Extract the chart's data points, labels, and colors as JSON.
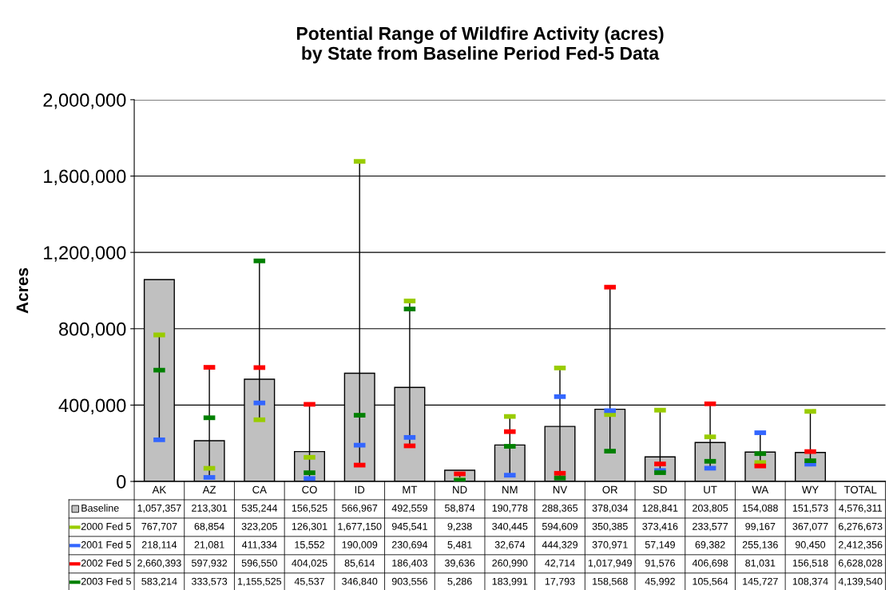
{
  "chart_data": {
    "type": "bar",
    "title": "Potential Range of Wildfire Activity (acres)\nby State from Baseline Period Fed-5 Data",
    "ylabel": "Acres",
    "categories": [
      "AK",
      "AZ",
      "CA",
      "CO",
      "ID",
      "MT",
      "ND",
      "NM",
      "NV",
      "OR",
      "SD",
      "UT",
      "WA",
      "WY",
      "TOTAL"
    ],
    "series": [
      {
        "name": "Baseline",
        "color": "#c0c0c0",
        "values": [
          1057357,
          213301,
          535244,
          156525,
          566967,
          492559,
          58874,
          190778,
          288365,
          378034,
          128841,
          203805,
          154088,
          151573,
          null
        ],
        "value_labels": [
          "1,057,357",
          "213,301",
          "535,244",
          "156,525",
          "566,967",
          "492,559",
          "58,874",
          "190,778",
          "288,365",
          "378,034",
          "128,841",
          "203,805",
          "154,088",
          "151,573",
          "4,576,311"
        ]
      },
      {
        "name": "2000 Fed 5",
        "type": "scatter",
        "color": "#99cc00",
        "values": [
          767707,
          68854,
          323205,
          126301,
          1677150,
          945541,
          9238,
          340445,
          594609,
          350385,
          373416,
          233577,
          99167,
          367077,
          null
        ],
        "value_labels": [
          "767,707",
          "68,854",
          "323,205",
          "126,301",
          "1,677,150",
          "945,541",
          "9,238",
          "340,445",
          "594,609",
          "350,385",
          "373,416",
          "233,577",
          "99,167",
          "367,077",
          "6,276,673"
        ]
      },
      {
        "name": "2001 Fed 5",
        "type": "scatter",
        "color": "#3366ff",
        "values": [
          218114,
          21081,
          411334,
          15552,
          190009,
          230694,
          5481,
          32674,
          444329,
          370971,
          57149,
          69382,
          255136,
          90450,
          null
        ],
        "value_labels": [
          "218,114",
          "21,081",
          "411,334",
          "15,552",
          "190,009",
          "230,694",
          "5,481",
          "32,674",
          "444,329",
          "370,971",
          "57,149",
          "69,382",
          "255,136",
          "90,450",
          "2,412,356"
        ]
      },
      {
        "name": "2002 Fed 5",
        "type": "scatter",
        "color": "#ff0000",
        "values": [
          null,
          597932,
          596550,
          404025,
          85614,
          186403,
          39636,
          260990,
          42714,
          1017949,
          91576,
          406698,
          81031,
          156518,
          null
        ],
        "value_labels": [
          "2,660,393",
          "597,932",
          "596,550",
          "404,025",
          "85,614",
          "186,403",
          "39,636",
          "260,990",
          "42,714",
          "1,017,949",
          "91,576",
          "406,698",
          "81,031",
          "156,518",
          "6,628,028"
        ]
      },
      {
        "name": "2003 Fed 5",
        "type": "scatter",
        "color": "#008000",
        "values": [
          583214,
          333573,
          1155525,
          45537,
          346840,
          903556,
          5286,
          183991,
          17793,
          158568,
          45992,
          105564,
          145727,
          108374,
          null
        ],
        "value_labels": [
          "583,214",
          "333,573",
          "1,155,525",
          "45,537",
          "346,840",
          "903,556",
          "5,286",
          "183,991",
          "17,793",
          "158,568",
          "45,992",
          "105,564",
          "145,727",
          "108,374",
          "4,139,540"
        ]
      }
    ],
    "ylim": [
      0,
      2000000
    ],
    "yticks": [
      {
        "value": 0,
        "label": "0"
      },
      {
        "value": 400000,
        "label": "400,000"
      },
      {
        "value": 800000,
        "label": "800,000"
      },
      {
        "value": 1200000,
        "label": "1,200,000"
      },
      {
        "value": 1600000,
        "label": "1,600,000"
      },
      {
        "value": 2000000,
        "label": "2,000,000"
      }
    ],
    "grid": "y",
    "legend": "bottom"
  }
}
